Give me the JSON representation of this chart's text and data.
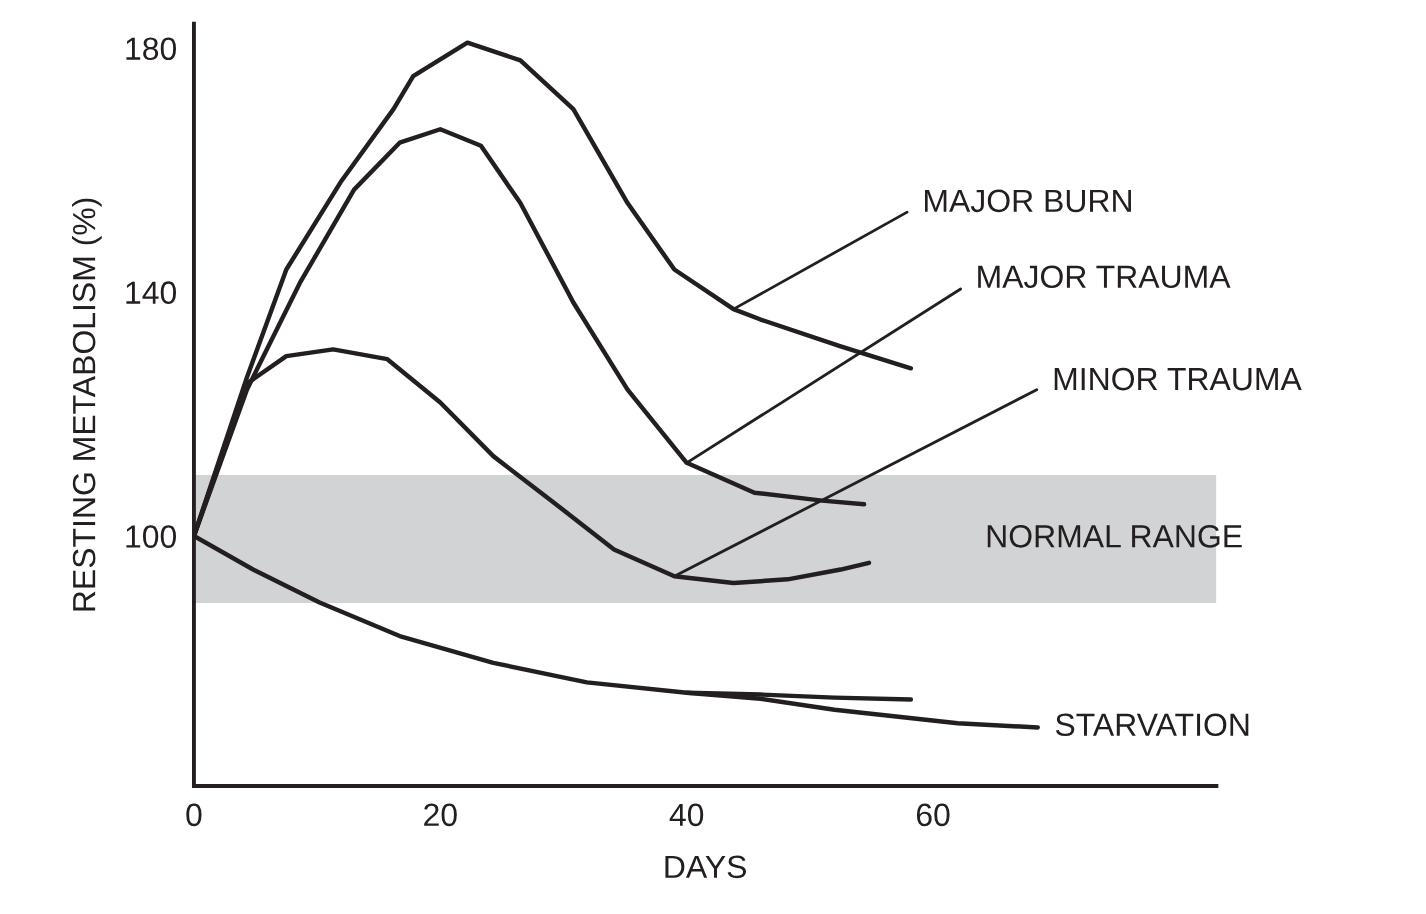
{
  "chart_data": {
    "type": "line",
    "xlabel": "DAYS",
    "ylabel": "RESTING METABOLISM (%)",
    "xlim": [
      0,
      83
    ],
    "ylim": [
      59,
      184
    ],
    "xticks": [
      0,
      20,
      40,
      60
    ],
    "yticks": [
      100,
      140,
      180
    ],
    "grid": false,
    "legend": false,
    "marker": "none",
    "line_style": "solid",
    "series": [
      {
        "color": "#231f20",
        "x": [
          0,
          4.3,
          7.5,
          11.9,
          16.2,
          17.8,
          22.2,
          26.5,
          30.8,
          35.2,
          39,
          43.8,
          46,
          52.5,
          58.2
        ],
        "values": [
          100,
          126,
          143.7,
          158,
          170,
          175.4,
          180.9,
          178,
          170,
          154.6,
          143.7,
          137.2,
          135.5,
          131.1,
          127.5
        ]
      },
      {
        "color": "#231f20",
        "x": [
          0,
          4.3,
          8.6,
          13,
          16.7,
          20,
          23.3,
          26.5,
          30.8,
          35.2,
          40,
          45.5,
          51,
          54.4
        ],
        "values": [
          100,
          124,
          141.5,
          156.8,
          164.5,
          166.7,
          164,
          154.6,
          138.3,
          124,
          112,
          107.1,
          105.8,
          105.2
        ]
      },
      {
        "color": "#231f20",
        "x": [
          0,
          4.3,
          7.5,
          11.3,
          15.7,
          20,
          24.3,
          29.2,
          34.1,
          39,
          43.8,
          48.2,
          52.5,
          54.8
        ],
        "values": [
          100,
          125,
          129.5,
          130.6,
          129,
          121.9,
          113.1,
          105.5,
          97.8,
          93.4,
          92.3,
          92.9,
          94.5,
          95.6
        ]
      },
      {
        "color": "#231f20",
        "x": [
          0,
          4.8,
          10.2,
          16.7,
          24.3,
          31.9,
          40,
          46,
          52,
          62,
          68.5
        ],
        "values": [
          100,
          94.5,
          89.1,
          83.6,
          79.2,
          76,
          74.3,
          73.3,
          71.5,
          69.3,
          68.6
        ]
      },
      {
        "color": "#231f20",
        "x": [
          40,
          46,
          52,
          58.2
        ],
        "values": [
          74.3,
          74,
          73.5,
          73.2
        ]
      }
    ],
    "bands": [
      {
        "axis": "y",
        "from": 89,
        "to": 110,
        "label": "NORMAL RANGE",
        "color": "#d1d3d4"
      }
    ],
    "annotations": [
      {
        "text": "MAJOR BURN",
        "x": 43.8,
        "y": 137.2
      },
      {
        "text": "MAJOR TRAUMA",
        "x": 40,
        "y": 112
      },
      {
        "text": "MINOR TRAUMA",
        "x": 39,
        "y": 93.4
      },
      {
        "text": "STARVATION",
        "x": 68.5,
        "y": 68.6
      }
    ]
  }
}
